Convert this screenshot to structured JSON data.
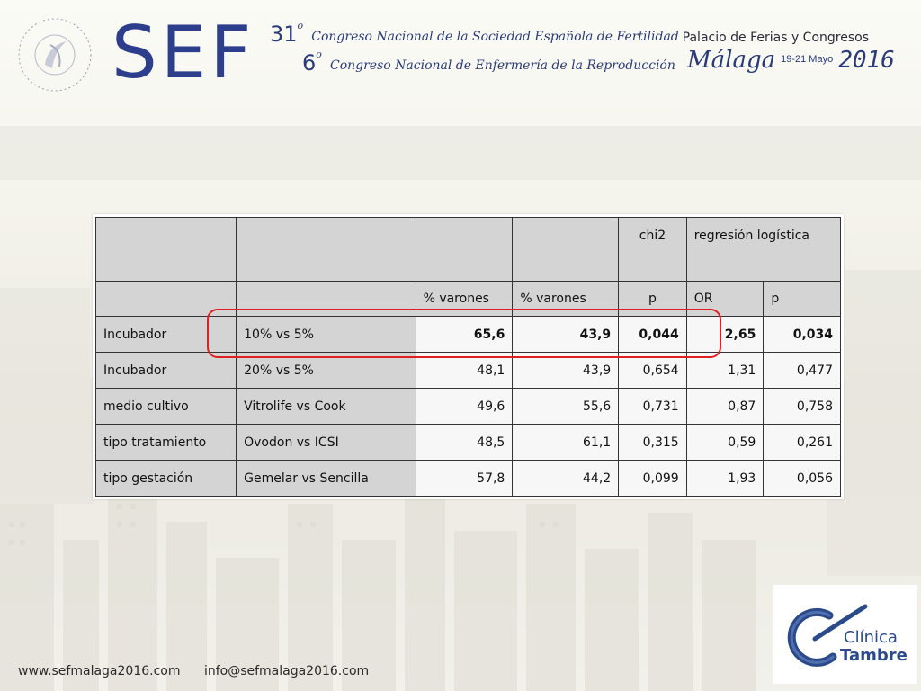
{
  "header": {
    "seal_text": "Española de Fertilidad · Sociedad",
    "logo": "SEF",
    "congress_line1_num": "31",
    "congress_line1_sup": "o",
    "congress_line1_text": "Congreso Nacional de la Sociedad Española de Fertilidad",
    "congress_line2_num": "6",
    "congress_line2_sup": "o",
    "congress_line2_text": "Congreso Nacional de Enfermería de la Reproducción",
    "venue": "Palacio de Ferias y Congresos",
    "city": "Málaga",
    "dates": "19-21 Mayo",
    "year": "2016"
  },
  "table": {
    "header1": {
      "chi2": "chi2",
      "regression": "regresión logística"
    },
    "header2": {
      "col3": "% varones",
      "col4": "% varones",
      "col5": "p",
      "col6": "OR",
      "col7": "p"
    },
    "rows": [
      {
        "factor": "Incubador",
        "comparison": "10% vs 5%",
        "pct_a": "65,6",
        "pct_b": "43,9",
        "chi_p": "0,044",
        "or": "2,65",
        "reg_p": "0,034"
      },
      {
        "factor": "Incubador",
        "comparison": "20% vs 5%",
        "pct_a": "48,1",
        "pct_b": "43,9",
        "chi_p": "0,654",
        "or": "1,31",
        "reg_p": "0,477"
      },
      {
        "factor": "medio cultivo",
        "comparison": "Vitrolife vs Cook",
        "pct_a": "49,6",
        "pct_b": "55,6",
        "chi_p": "0,731",
        "or": "0,87",
        "reg_p": "0,758"
      },
      {
        "factor": "tipo tratamiento",
        "comparison": "Ovodon vs ICSI",
        "pct_a": "48,5",
        "pct_b": "61,1",
        "chi_p": "0,315",
        "or": "0,59",
        "reg_p": "0,261"
      },
      {
        "factor": "tipo gestación",
        "comparison": "Gemelar vs Sencilla",
        "pct_a": "57,8",
        "pct_b": "44,2",
        "chi_p": "0,099",
        "or": "1,93",
        "reg_p": "0,056"
      }
    ]
  },
  "footer": {
    "website": "www.sefmalaga2016.com",
    "email": "info@sefmalaga2016.com"
  },
  "sponsor": {
    "line1": "Clínica",
    "line2": "Tambre"
  },
  "colors": {
    "brand_blue": "#2c3e8c",
    "highlight_red": "#e02020",
    "header_gray": "#d4d4d4"
  }
}
